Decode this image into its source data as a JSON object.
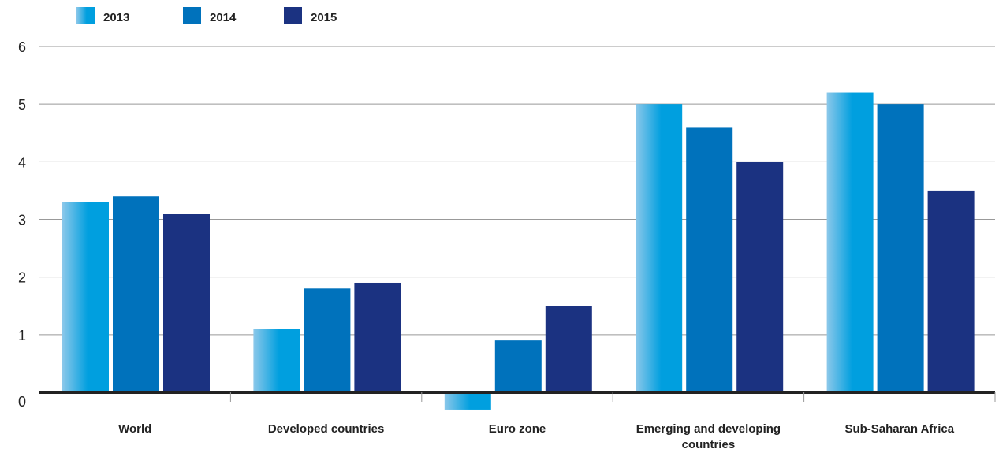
{
  "chart_data": {
    "type": "bar",
    "title": "",
    "xlabel": "",
    "ylabel": "",
    "ylim": [
      0,
      6
    ],
    "yticks": [
      "0",
      "1",
      "2",
      "3",
      "4",
      "5",
      "6"
    ],
    "grid": true,
    "legend_position": "top-left",
    "categories": [
      [
        "World"
      ],
      [
        "Developed countries"
      ],
      [
        "Euro zone"
      ],
      [
        "Emerging and developing",
        "countries"
      ],
      [
        "Sub-Saharan Africa"
      ]
    ],
    "series": [
      {
        "name": "2013",
        "values": [
          3.3,
          1.1,
          -0.3,
          5.0,
          5.2
        ]
      },
      {
        "name": "2014",
        "values": [
          3.4,
          1.8,
          0.9,
          4.6,
          5.0
        ]
      },
      {
        "name": "2015",
        "values": [
          3.1,
          1.9,
          1.5,
          4.0,
          3.5
        ]
      }
    ],
    "colors": {
      "2013_light": "#8cc8ea",
      "2013_dark": "#009fdf",
      "2014": "#0072bc",
      "2015": "#1b3281",
      "grid": "#999999",
      "baseline": "#222222"
    }
  }
}
